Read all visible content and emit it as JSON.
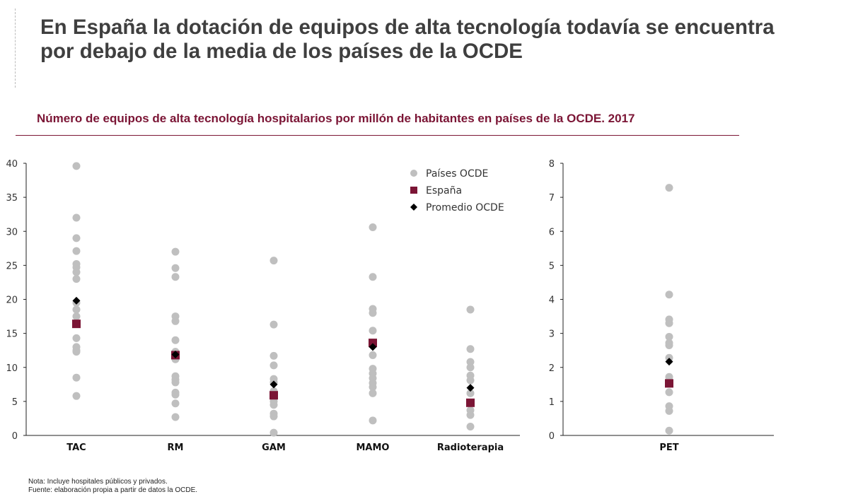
{
  "header": {
    "title_line1": "En España la dotación de equipos de alta tecnología todavía se encuentra",
    "title_line2": "por debajo de la media de los países de la OCDE"
  },
  "notes": {
    "nota": "Nota: Incluye hospitales públicos y privados.",
    "fuente": "Fuente: elaboración propia a partir de datos la OCDE."
  },
  "chart_data": [
    {
      "type": "scatter",
      "title": "Número de equipos de alta tecnología hospitalarios por millón de habitantes en países de la OCDE. 2017",
      "categories": [
        "TAC",
        "RM",
        "GAM",
        "MAMO",
        "Radioterapia"
      ],
      "ylim": [
        0,
        40
      ],
      "yticks": [
        0,
        5,
        10,
        15,
        20,
        25,
        30,
        35,
        40
      ],
      "grid": false,
      "legend": {
        "position": "top-right",
        "entries": [
          {
            "label": "Países OCDE",
            "marker": "circle",
            "color": "#bfbfbf"
          },
          {
            "label": "España",
            "marker": "square",
            "color": "#7b1535"
          },
          {
            "label": "Promedio OCDE",
            "marker": "diamond",
            "color": "#000000"
          }
        ]
      },
      "series": [
        {
          "name": "Países OCDE",
          "values": [
            [
              39.6,
              32,
              29,
              27.1,
              25.2,
              24.7,
              24,
              23,
              19.5,
              18.5,
              17.5,
              14.3,
              13,
              12.5,
              12.3,
              8.5,
              5.8
            ],
            [
              27,
              24.6,
              23.3,
              17.5,
              16.8,
              14,
              12.3,
              11.2,
              8.7,
              8.2,
              7.8,
              6.3,
              6,
              4.7,
              2.7
            ],
            [
              25.7,
              16.3,
              11.7,
              10.3,
              8.3,
              7.8,
              6.5,
              5,
              4.5,
              3.2,
              2.8,
              0.4
            ],
            [
              30.6,
              23.3,
              18.6,
              18,
              15.4,
              11.8,
              9.8,
              9.1,
              8.4,
              7.7,
              7.1,
              6.2,
              2.2
            ],
            [
              18.5,
              12.7,
              10.8,
              10,
              8.8,
              8.1,
              6.2,
              3.7,
              3,
              1.3
            ]
          ]
        },
        {
          "name": "España",
          "values": [
            16.4,
            11.8,
            5.9,
            13.6,
            4.8
          ]
        },
        {
          "name": "Promedio OCDE",
          "values": [
            19.8,
            11.9,
            7.5,
            13.0,
            7.0
          ]
        }
      ]
    },
    {
      "type": "scatter",
      "categories": [
        "PET"
      ],
      "ylim": [
        0,
        8
      ],
      "yticks": [
        0,
        1,
        2,
        3,
        4,
        5,
        6,
        7,
        8
      ],
      "grid": false,
      "series": [
        {
          "name": "Países OCDE",
          "values": [
            [
              7.28,
              4.14,
              3.41,
              3.3,
              2.9,
              2.72,
              2.65,
              2.28,
              1.72,
              1.27,
              0.86,
              0.72,
              0.14
            ]
          ]
        },
        {
          "name": "España",
          "values": [
            1.53
          ]
        },
        {
          "name": "Promedio OCDE",
          "values": [
            2.17
          ]
        }
      ]
    }
  ]
}
